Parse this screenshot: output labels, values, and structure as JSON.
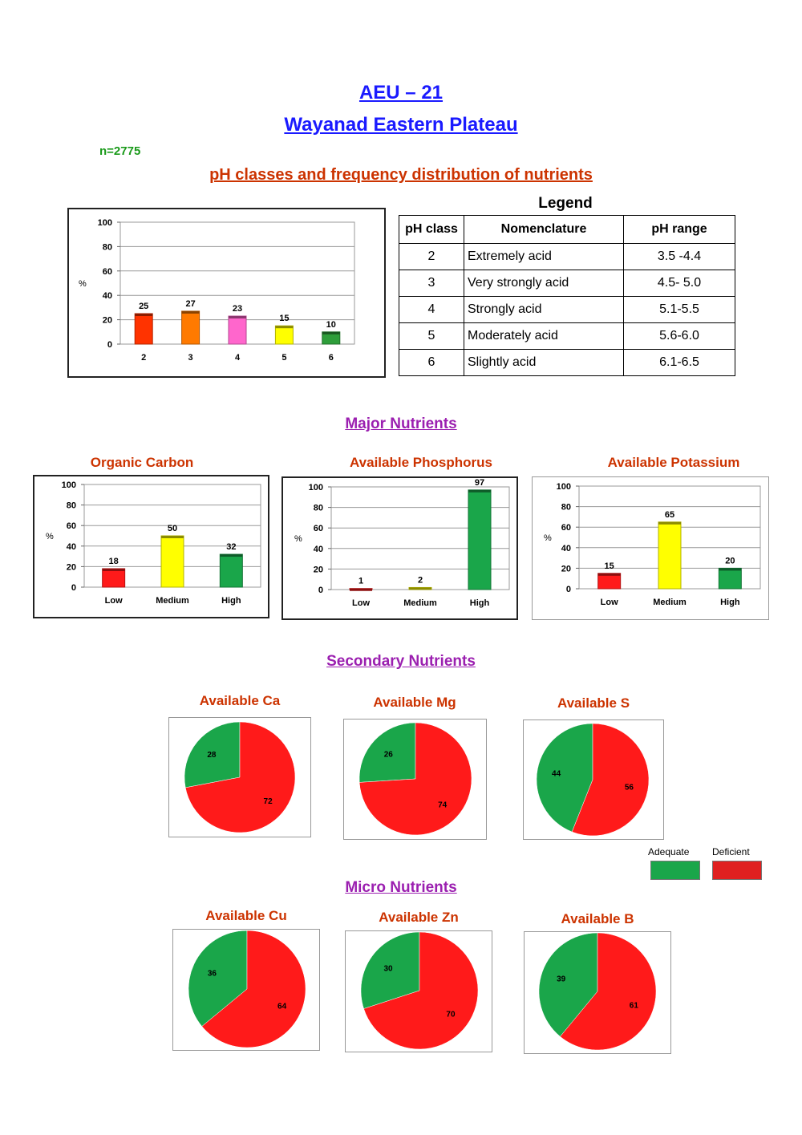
{
  "header": {
    "title": "AEU – 21",
    "subtitle": "Wayanad Eastern Plateau",
    "sample_count": "n=2775",
    "section_ph": "pH classes and frequency distribution of nutrients",
    "legend_title": "Legend",
    "section_major": "Major Nutrients",
    "section_secondary": "Secondary Nutrients",
    "section_micro": "Micro Nutrients"
  },
  "legend_table": {
    "headers": [
      "pH class",
      "Nomenclature",
      "pH range"
    ],
    "rows": [
      [
        "2",
        "Extremely acid",
        "3.5 -4.4"
      ],
      [
        "3",
        "Very strongly acid",
        "4.5- 5.0"
      ],
      [
        "4",
        "Strongly acid",
        "5.1-5.5"
      ],
      [
        "5",
        "Moderately acid",
        "5.6-6.0"
      ],
      [
        "6",
        "Slightly acid",
        "6.1-6.5"
      ]
    ]
  },
  "pie_key": {
    "adequate_label": "Adequate",
    "deficient_label": "Deficient",
    "adequate_color": "#1aa64a",
    "deficient_color": "#e02020"
  },
  "chart_data": [
    {
      "id": "ph",
      "type": "bar",
      "title": "",
      "ylabel": "%",
      "ylim": [
        0,
        100
      ],
      "yticks": [
        0,
        20,
        40,
        60,
        80,
        100
      ],
      "categories": [
        "2",
        "3",
        "4",
        "5",
        "6"
      ],
      "values": [
        25,
        27,
        23,
        15,
        10
      ],
      "colors": [
        "#ff3300",
        "#ff7a00",
        "#ff66cc",
        "#ffff00",
        "#2e9e3a"
      ],
      "grid": true
    },
    {
      "id": "oc",
      "type": "bar",
      "title": "Organic Carbon",
      "ylabel": "%",
      "ylim": [
        0,
        100
      ],
      "yticks": [
        0,
        20,
        40,
        60,
        80,
        100
      ],
      "categories": [
        "Low",
        "Medium",
        "High"
      ],
      "values": [
        18,
        50,
        32
      ],
      "colors": [
        "#ff1a1a",
        "#ffff00",
        "#1aa64a"
      ],
      "grid": true
    },
    {
      "id": "p",
      "type": "bar",
      "title": "Available Phosphorus",
      "ylabel": "%",
      "ylim": [
        0,
        100
      ],
      "yticks": [
        0,
        20,
        40,
        60,
        80,
        100
      ],
      "categories": [
        "Low",
        "Medium",
        "High"
      ],
      "values": [
        1,
        2,
        97
      ],
      "colors": [
        "#ff1a1a",
        "#ffff00",
        "#1aa64a"
      ],
      "grid": true
    },
    {
      "id": "k",
      "type": "bar",
      "title": "Available Potassium",
      "ylabel": "%",
      "ylim": [
        0,
        100
      ],
      "yticks": [
        0,
        20,
        40,
        60,
        80,
        100
      ],
      "categories": [
        "Low",
        "Medium",
        "High"
      ],
      "values": [
        15,
        65,
        20
      ],
      "colors": [
        "#ff1a1a",
        "#ffff00",
        "#1aa64a"
      ],
      "grid": true
    },
    {
      "id": "ca",
      "type": "pie",
      "title": "Available Ca",
      "labels": [
        "Adequate",
        "Deficient"
      ],
      "values": [
        28,
        72
      ],
      "colors": [
        "#1aa64a",
        "#ff1a1a"
      ]
    },
    {
      "id": "mg",
      "type": "pie",
      "title": "Available Mg",
      "labels": [
        "Adequate",
        "Deficient"
      ],
      "values": [
        26,
        74
      ],
      "colors": [
        "#1aa64a",
        "#ff1a1a"
      ]
    },
    {
      "id": "s",
      "type": "pie",
      "title": "Available S",
      "labels": [
        "Adequate",
        "Deficient"
      ],
      "values": [
        44,
        56
      ],
      "colors": [
        "#1aa64a",
        "#ff1a1a"
      ]
    },
    {
      "id": "cu",
      "type": "pie",
      "title": "Available Cu",
      "labels": [
        "Adequate",
        "Deficient"
      ],
      "values": [
        36,
        64
      ],
      "colors": [
        "#1aa64a",
        "#ff1a1a"
      ]
    },
    {
      "id": "zn",
      "type": "pie",
      "title": "Available Zn",
      "labels": [
        "Adequate",
        "Deficient"
      ],
      "values": [
        30,
        70
      ],
      "colors": [
        "#1aa64a",
        "#ff1a1a"
      ]
    },
    {
      "id": "b",
      "type": "pie",
      "title": "Available B",
      "labels": [
        "Adequate",
        "Deficient"
      ],
      "values": [
        39,
        61
      ],
      "colors": [
        "#1aa64a",
        "#ff1a1a"
      ]
    }
  ]
}
